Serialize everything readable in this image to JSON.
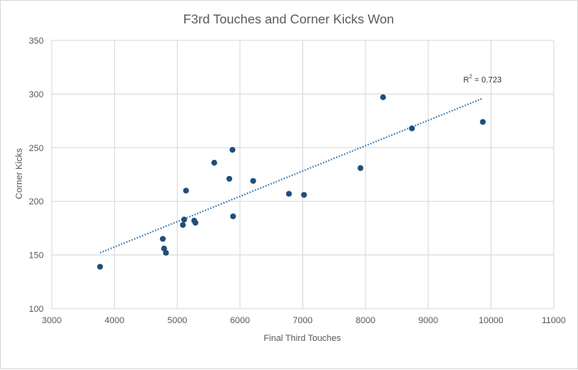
{
  "chart_data": {
    "type": "scatter",
    "title": "F3rd Touches and Corner Kicks Won",
    "xlabel": "Final Third Touches",
    "ylabel": "Corner Kicks",
    "xlim": [
      3000,
      11000
    ],
    "ylim": [
      100,
      350
    ],
    "xticks": [
      3000,
      4000,
      5000,
      6000,
      7000,
      8000,
      9000,
      10000,
      11000
    ],
    "yticks": [
      100,
      150,
      200,
      250,
      300,
      350
    ],
    "grid": true,
    "legend": "none",
    "marker_color": "#1f4e79",
    "trendline_color": "#2e75b6",
    "points": [
      {
        "x": 3770,
        "y": 139
      },
      {
        "x": 4770,
        "y": 165
      },
      {
        "x": 4790,
        "y": 156
      },
      {
        "x": 4820,
        "y": 152
      },
      {
        "x": 5090,
        "y": 178
      },
      {
        "x": 5110,
        "y": 183
      },
      {
        "x": 5140,
        "y": 210
      },
      {
        "x": 5270,
        "y": 182
      },
      {
        "x": 5290,
        "y": 180
      },
      {
        "x": 5590,
        "y": 236
      },
      {
        "x": 5830,
        "y": 221
      },
      {
        "x": 5880,
        "y": 248
      },
      {
        "x": 5890,
        "y": 186
      },
      {
        "x": 6210,
        "y": 219
      },
      {
        "x": 6780,
        "y": 207
      },
      {
        "x": 7020,
        "y": 206
      },
      {
        "x": 7920,
        "y": 231
      },
      {
        "x": 8280,
        "y": 297
      },
      {
        "x": 8740,
        "y": 268
      },
      {
        "x": 9870,
        "y": 274
      }
    ],
    "trendline": {
      "type": "linear",
      "x": [
        3770,
        9870
      ],
      "y": [
        152,
        296
      ],
      "label_prefix": "R",
      "label_sup": "2",
      "label_value": " = 0.723"
    }
  }
}
